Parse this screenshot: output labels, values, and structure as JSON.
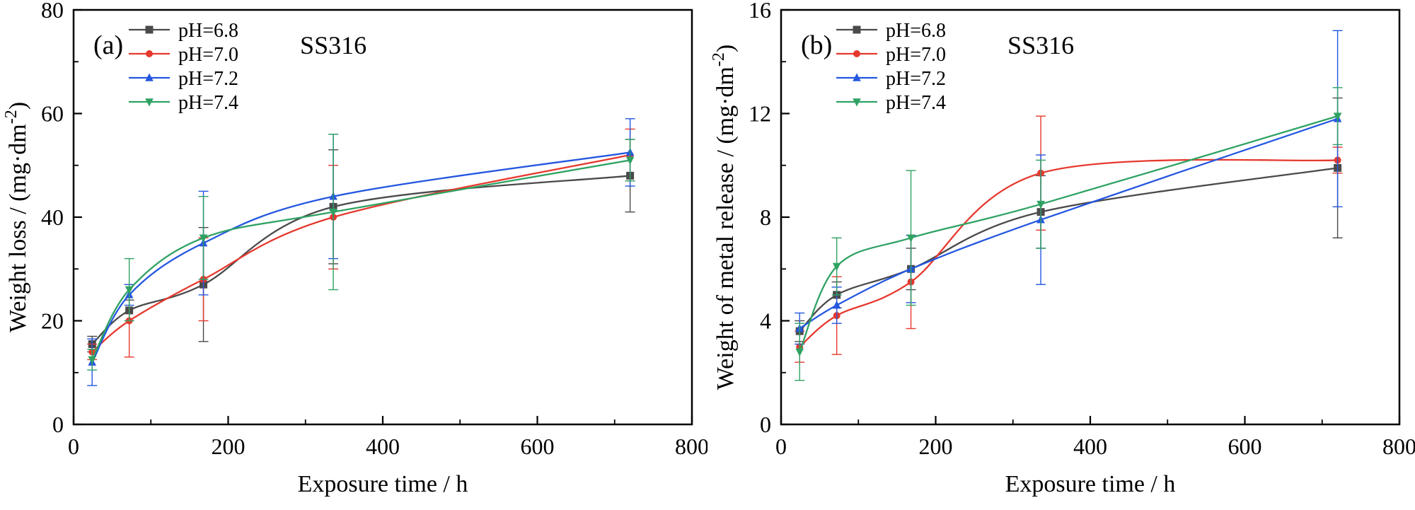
{
  "figure": {
    "background": "#ffffff",
    "frame_color": "#000000"
  },
  "chart_data": [
    {
      "type": "line",
      "panel_label": "(a)",
      "title": "SS316",
      "xlabel": "Exposure time / h",
      "ylabel_main": "Weight loss / (mg·dm",
      "ylabel_sup": "-2",
      "ylabel_close": ")",
      "xlim": [
        0,
        800
      ],
      "ylim": [
        0,
        80
      ],
      "xticks": [
        0,
        200,
        400,
        600,
        800
      ],
      "yticks": [
        0,
        20,
        40,
        60,
        80
      ],
      "grid": false,
      "legend_position": "top-left",
      "x": [
        24,
        72,
        168,
        336,
        720
      ],
      "series": [
        {
          "name": "pH=6.8",
          "color": "#4a4a4a",
          "marker": "square",
          "values": [
            15.5,
            22,
            27,
            42,
            48
          ],
          "err": [
            1.5,
            2,
            11,
            11,
            7
          ]
        },
        {
          "name": "pH=7.0",
          "color": "#e6392e",
          "marker": "circle",
          "values": [
            14,
            20,
            28,
            40,
            52
          ],
          "err": [
            1.5,
            7,
            8,
            10,
            5
          ]
        },
        {
          "name": "pH=7.2",
          "color": "#2457e0",
          "marker": "triangle-up",
          "values": [
            12,
            25,
            35,
            44,
            52.5
          ],
          "err": [
            4.5,
            2,
            10,
            12,
            6.5
          ]
        },
        {
          "name": "pH=7.4",
          "color": "#2fa263",
          "marker": "triangle-down",
          "values": [
            12.5,
            26,
            36,
            41,
            51
          ],
          "err": [
            2,
            6,
            8,
            15,
            4
          ]
        }
      ]
    },
    {
      "type": "line",
      "panel_label": "(b)",
      "title": "SS316",
      "xlabel": "Exposure time / h",
      "ylabel_main": "Weight of metal release / (mg·dm",
      "ylabel_sup": "-2",
      "ylabel_close": ")",
      "xlim": [
        0,
        800
      ],
      "ylim": [
        0,
        16
      ],
      "xticks": [
        0,
        200,
        400,
        600,
        800
      ],
      "yticks": [
        0,
        4,
        8,
        12,
        16
      ],
      "grid": false,
      "legend_position": "top-left",
      "x": [
        24,
        72,
        168,
        336,
        720
      ],
      "series": [
        {
          "name": "pH=6.8",
          "color": "#4a4a4a",
          "marker": "square",
          "values": [
            3.6,
            5.0,
            6.0,
            8.2,
            9.9
          ],
          "err": [
            0.4,
            0.5,
            0.8,
            1.4,
            2.7
          ]
        },
        {
          "name": "pH=7.0",
          "color": "#e6392e",
          "marker": "circle",
          "values": [
            3.0,
            4.2,
            5.5,
            9.7,
            10.2
          ],
          "err": [
            0.6,
            1.5,
            1.8,
            2.2,
            0.5
          ]
        },
        {
          "name": "pH=7.2",
          "color": "#2457e0",
          "marker": "triangle-up",
          "values": [
            3.7,
            4.6,
            6.0,
            7.9,
            11.8
          ],
          "err": [
            0.6,
            0.7,
            1.3,
            2.5,
            3.4
          ]
        },
        {
          "name": "pH=7.4",
          "color": "#2fa263",
          "marker": "triangle-down",
          "values": [
            2.8,
            6.1,
            7.2,
            8.5,
            11.9
          ],
          "err": [
            1.1,
            1.1,
            2.6,
            1.7,
            1.1
          ]
        }
      ]
    }
  ]
}
